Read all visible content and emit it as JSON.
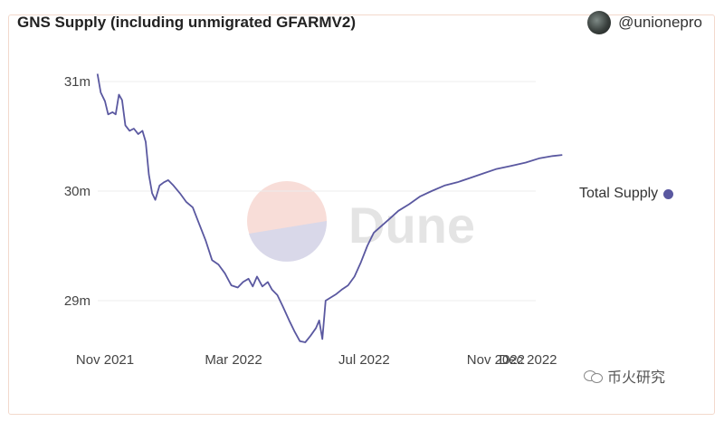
{
  "header": {
    "title": "GNS Supply (including unmigrated GFARMV2)",
    "author": "@unionepro"
  },
  "watermark_text": "币火研究",
  "colors": {
    "line": "#5a58a0",
    "grid": "#ececec",
    "axis_text": "#444"
  },
  "chart_data": {
    "type": "line",
    "title": "GNS Supply (including unmigrated GFARMV2)",
    "xlabel": "",
    "ylabel": "",
    "x_ticks": [
      "Nov 2021",
      "Mar 2022",
      "Jul 2022",
      "Nov 2022",
      "Dec 2022"
    ],
    "y_ticks": [
      "29m",
      "30m",
      "31m"
    ],
    "ylim": [
      28.5,
      31.1
    ],
    "grid": true,
    "legend": "right",
    "series": [
      {
        "name": "Total Supply",
        "color": "#5a58a0",
        "points": [
          [
            "2021-10-25",
            31.07
          ],
          [
            "2021-10-28",
            30.9
          ],
          [
            "2021-11-01",
            30.82
          ],
          [
            "2021-11-04",
            30.7
          ],
          [
            "2021-11-08",
            30.72
          ],
          [
            "2021-11-11",
            30.7
          ],
          [
            "2021-11-14",
            30.88
          ],
          [
            "2021-11-17",
            30.83
          ],
          [
            "2021-11-20",
            30.6
          ],
          [
            "2021-11-24",
            30.55
          ],
          [
            "2021-11-28",
            30.57
          ],
          [
            "2021-12-02",
            30.52
          ],
          [
            "2021-12-06",
            30.55
          ],
          [
            "2021-12-09",
            30.45
          ],
          [
            "2021-12-12",
            30.15
          ],
          [
            "2021-12-15",
            29.98
          ],
          [
            "2021-12-18",
            29.92
          ],
          [
            "2021-12-22",
            30.05
          ],
          [
            "2021-12-26",
            30.08
          ],
          [
            "2021-12-30",
            30.1
          ],
          [
            "2022-01-04",
            30.05
          ],
          [
            "2022-01-10",
            29.98
          ],
          [
            "2022-01-16",
            29.9
          ],
          [
            "2022-01-22",
            29.85
          ],
          [
            "2022-01-28",
            29.7
          ],
          [
            "2022-02-03",
            29.55
          ],
          [
            "2022-02-09",
            29.37
          ],
          [
            "2022-02-15",
            29.33
          ],
          [
            "2022-02-21",
            29.25
          ],
          [
            "2022-02-27",
            29.14
          ],
          [
            "2022-03-05",
            29.12
          ],
          [
            "2022-03-10",
            29.17
          ],
          [
            "2022-03-15",
            29.2
          ],
          [
            "2022-03-19",
            29.13
          ],
          [
            "2022-03-23",
            29.22
          ],
          [
            "2022-03-28",
            29.13
          ],
          [
            "2022-04-02",
            29.17
          ],
          [
            "2022-04-06",
            29.1
          ],
          [
            "2022-04-11",
            29.05
          ],
          [
            "2022-04-16",
            28.95
          ],
          [
            "2022-04-22",
            28.82
          ],
          [
            "2022-04-27",
            28.72
          ],
          [
            "2022-05-02",
            28.63
          ],
          [
            "2022-05-07",
            28.62
          ],
          [
            "2022-05-12",
            28.68
          ],
          [
            "2022-05-17",
            28.75
          ],
          [
            "2022-05-20",
            28.82
          ],
          [
            "2022-05-23",
            28.65
          ],
          [
            "2022-05-26",
            29.0
          ],
          [
            "2022-05-31",
            29.03
          ],
          [
            "2022-06-05",
            29.06
          ],
          [
            "2022-06-10",
            29.1
          ],
          [
            "2022-06-16",
            29.14
          ],
          [
            "2022-06-22",
            29.22
          ],
          [
            "2022-06-28",
            29.35
          ],
          [
            "2022-07-04",
            29.5
          ],
          [
            "2022-07-10",
            29.62
          ],
          [
            "2022-07-17",
            29.68
          ],
          [
            "2022-07-25",
            29.75
          ],
          [
            "2022-08-02",
            29.82
          ],
          [
            "2022-08-12",
            29.88
          ],
          [
            "2022-08-22",
            29.95
          ],
          [
            "2022-09-02",
            30.0
          ],
          [
            "2022-09-14",
            30.05
          ],
          [
            "2022-09-26",
            30.08
          ],
          [
            "2022-10-08",
            30.12
          ],
          [
            "2022-10-20",
            30.16
          ],
          [
            "2022-11-01",
            30.2
          ],
          [
            "2022-11-15",
            30.23
          ],
          [
            "2022-11-29",
            30.26
          ],
          [
            "2022-12-12",
            30.3
          ],
          [
            "2022-12-24",
            30.32
          ],
          [
            "2023-01-02",
            30.33
          ]
        ]
      }
    ]
  }
}
